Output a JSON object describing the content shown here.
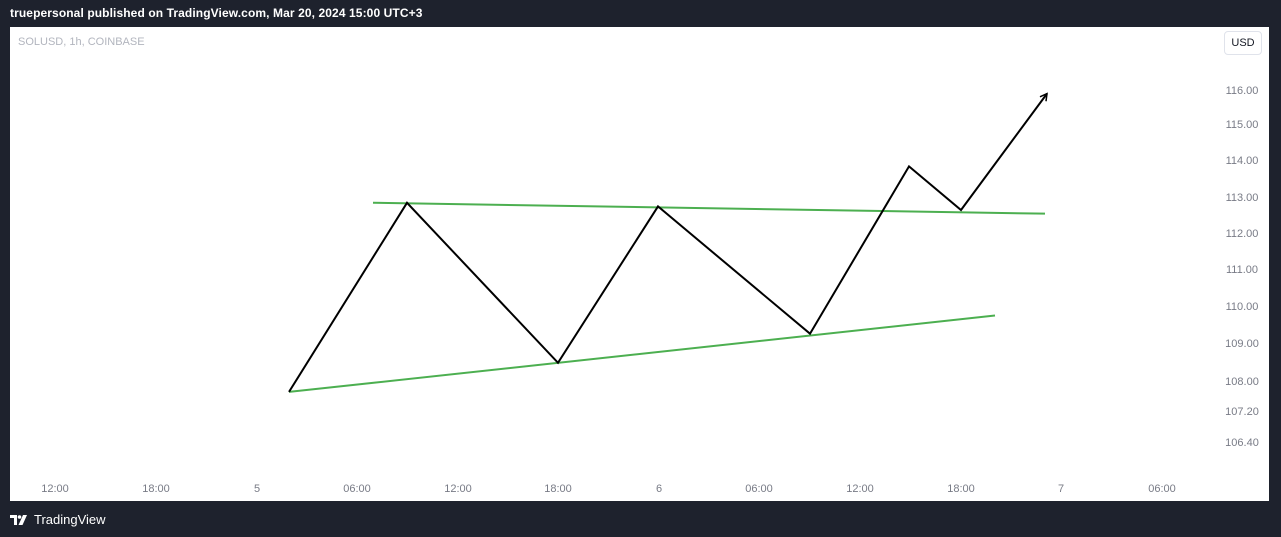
{
  "header": {
    "published_text": "truepersonal published on TradingView.com, Mar 20, 2024 15:00 UTC+3"
  },
  "chart": {
    "symbol_label": "SOLUSD, 1h, COINBASE",
    "currency": "USD",
    "y_axis": {
      "ticks": [
        "116.00",
        "115.00",
        "114.00",
        "113.00",
        "112.00",
        "111.00",
        "110.00",
        "109.00",
        "108.00",
        "107.20",
        "106.40"
      ]
    },
    "x_axis": {
      "ticks": [
        "12:00",
        "18:00",
        "5",
        "06:00",
        "12:00",
        "18:00",
        "6",
        "06:00",
        "12:00",
        "18:00",
        "7",
        "06:00"
      ]
    }
  },
  "chart_data": {
    "type": "line",
    "series": [
      {
        "values": [
          107.7,
          112.9,
          108.5,
          112.8,
          109.3,
          113.9,
          112.7,
          115.9
        ]
      }
    ],
    "trendlines": {
      "upper": [
        112.9,
        112.6
      ],
      "lower": [
        107.7,
        109.8
      ]
    },
    "colors": {
      "price_path": "#000000",
      "trendline": "#4caf50"
    }
  },
  "footer": {
    "brand": "TradingView"
  }
}
